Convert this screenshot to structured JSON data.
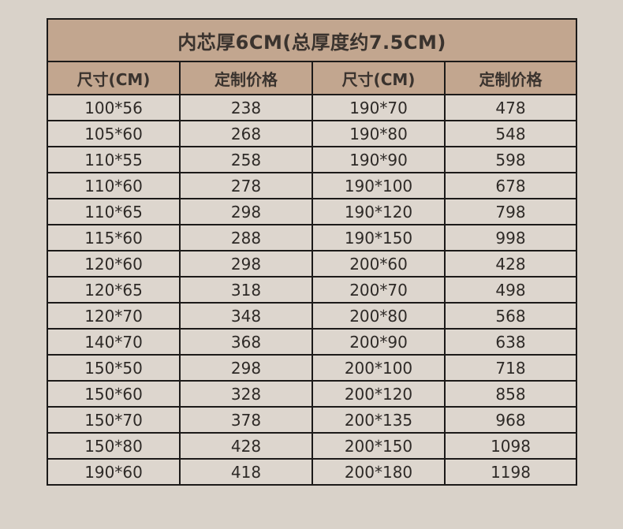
{
  "title": "内芯厚6CM(总厚度约7.5CM)",
  "headers": [
    "尺寸(CM)",
    "定制价格",
    "尺寸(CM)",
    "定制价格"
  ],
  "rows": [
    [
      "100*56",
      "238",
      "190*70",
      "478"
    ],
    [
      "105*60",
      "268",
      "190*80",
      "548"
    ],
    [
      "110*55",
      "258",
      "190*90",
      "598"
    ],
    [
      "110*60",
      "278",
      "190*100",
      "678"
    ],
    [
      "110*65",
      "298",
      "190*120",
      "798"
    ],
    [
      "115*60",
      "288",
      "190*150",
      "998"
    ],
    [
      "120*60",
      "298",
      "200*60",
      "428"
    ],
    [
      "120*65",
      "318",
      "200*70",
      "498"
    ],
    [
      "120*70",
      "348",
      "200*80",
      "568"
    ],
    [
      "140*70",
      "368",
      "200*90",
      "638"
    ],
    [
      "150*50",
      "298",
      "200*100",
      "718"
    ],
    [
      "150*60",
      "328",
      "200*120",
      "858"
    ],
    [
      "150*70",
      "378",
      "200*135",
      "968"
    ],
    [
      "150*80",
      "428",
      "200*150",
      "1098"
    ],
    [
      "190*60",
      "418",
      "200*180",
      "1198"
    ]
  ],
  "colors": {
    "background": "#d9d2c9",
    "header": "#c2a68f",
    "border": "#1c1a19",
    "text": "#2e2a27"
  }
}
